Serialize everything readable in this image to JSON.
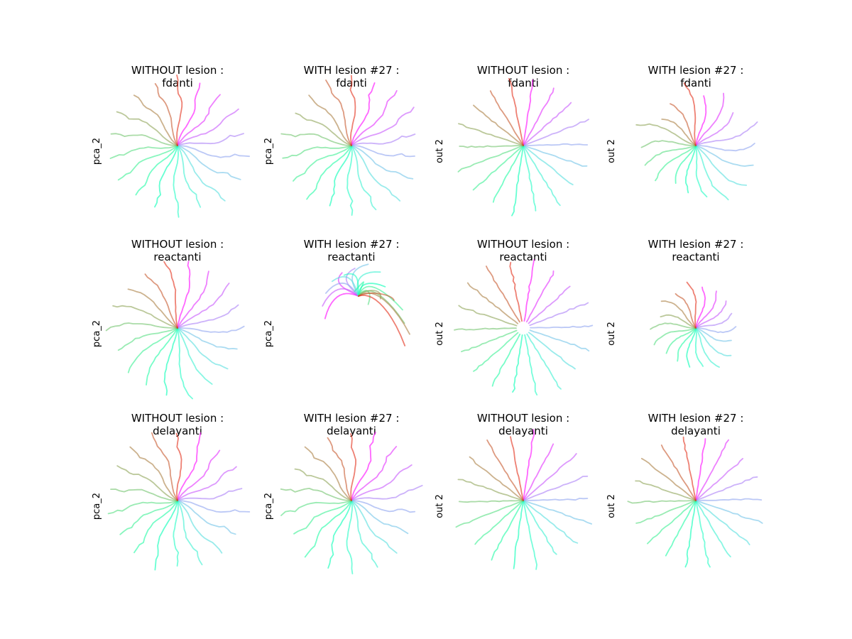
{
  "figure": {
    "rows": [
      "fdanti",
      "reactanti",
      "delayanti"
    ],
    "trajectory_count": 18,
    "colormap": "rainbow",
    "line_alpha": 0.6
  },
  "chart_data": [
    {
      "type": "line",
      "title_line1": "WITHOUT lesion :",
      "title_line2": "fdanti",
      "ylabel": "pca_2",
      "axis_visible": false,
      "style": "pca"
    },
    {
      "type": "line",
      "title_line1": "WITH lesion #27 :",
      "title_line2": "fdanti",
      "ylabel": "pca_2",
      "axis_visible": false,
      "style": "pca"
    },
    {
      "type": "line",
      "title_line1": "WITHOUT lesion :",
      "title_line2": "fdanti",
      "ylabel": "out 2",
      "axis_visible": false,
      "style": "out"
    },
    {
      "type": "line",
      "title_line1": "WITH lesion #27 :",
      "title_line2": "fdanti",
      "ylabel": "out 2",
      "axis_visible": false,
      "style": "out-scatter"
    },
    {
      "type": "line",
      "title_line1": "WITHOUT lesion :",
      "title_line2": "reactanti",
      "ylabel": "pca_2",
      "axis_visible": false,
      "style": "pca-smooth"
    },
    {
      "type": "line",
      "title_line1": "WITH lesion #27 :",
      "title_line2": "reactanti",
      "ylabel": "pca_2",
      "axis_visible": false,
      "style": "pca-collapsed"
    },
    {
      "type": "line",
      "title_line1": "WITHOUT lesion :",
      "title_line2": "reactanti",
      "ylabel": "out 2",
      "axis_visible": false,
      "style": "out-ring"
    },
    {
      "type": "line",
      "title_line1": "WITH lesion #27 :",
      "title_line2": "reactanti",
      "ylabel": "out 2",
      "axis_visible": false,
      "style": "out-small"
    },
    {
      "type": "line",
      "title_line1": "WITHOUT lesion :",
      "title_line2": "delayanti",
      "ylabel": "pca_2",
      "axis_visible": false,
      "style": "pca"
    },
    {
      "type": "line",
      "title_line1": "WITH lesion #27 :",
      "title_line2": "delayanti",
      "ylabel": "pca_2",
      "axis_visible": false,
      "style": "pca"
    },
    {
      "type": "line",
      "title_line1": "WITHOUT lesion :",
      "title_line2": "delayanti",
      "ylabel": "out 2",
      "axis_visible": false,
      "style": "out"
    },
    {
      "type": "line",
      "title_line1": "WITH lesion #27 :",
      "title_line2": "delayanti",
      "ylabel": "out 2",
      "axis_visible": false,
      "style": "out"
    }
  ]
}
